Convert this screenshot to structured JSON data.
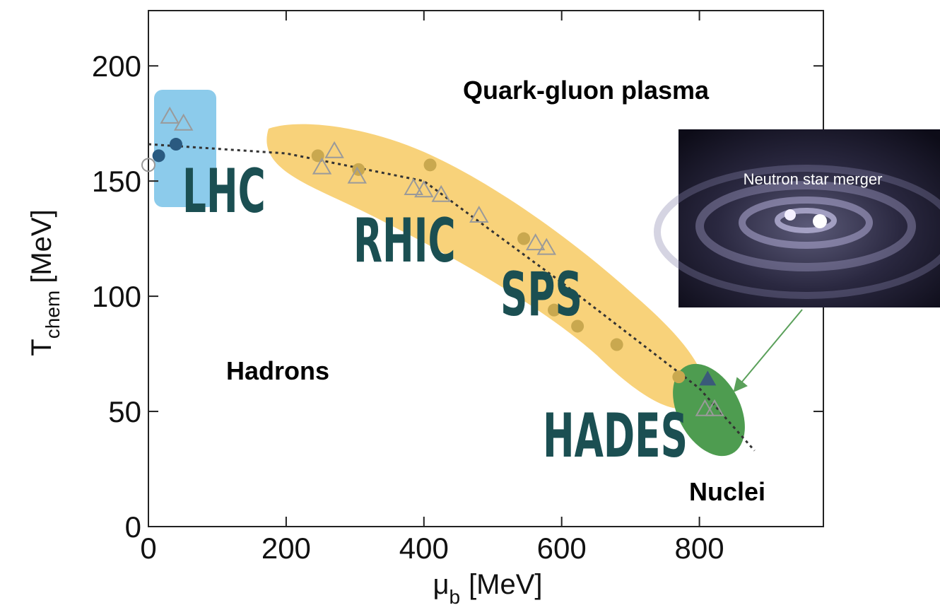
{
  "chart_data": {
    "type": "scatter",
    "xlabel": {
      "symbol": "μ",
      "subscript": "b",
      "unit": "[MeV]"
    },
    "ylabel": {
      "symbol": "T",
      "subscript": "chem",
      "unit": "[MeV]"
    },
    "xlim": [
      0,
      980
    ],
    "ylim": [
      0,
      224
    ],
    "xticks": [
      0,
      200,
      400,
      600,
      800
    ],
    "yticks": [
      0,
      50,
      100,
      150,
      200
    ],
    "series": [
      {
        "color": "#2a5a80",
        "marker": "circle",
        "x": [
          15,
          40
        ],
        "values": [
          161,
          166
        ]
      },
      {
        "color": "#999999",
        "marker": "circle-open",
        "x": [
          0
        ],
        "values": [
          157
        ]
      },
      {
        "color": "#c9a84f",
        "marker": "circle",
        "x": [
          246,
          305,
          409,
          545,
          589,
          623,
          680,
          770
        ],
        "values": [
          161,
          155,
          157,
          125,
          94,
          87,
          79,
          65
        ]
      },
      {
        "color": "#9a9a9a",
        "marker": "triangle-open",
        "x": [
          31,
          51,
          270,
          252,
          303,
          385,
          400,
          425,
          480,
          562,
          578,
          808,
          822
        ],
        "values": [
          178,
          175,
          163,
          156,
          152,
          147,
          146,
          144,
          135,
          123,
          121,
          51,
          51
        ]
      },
      {
        "color": "#3a5a7a",
        "marker": "triangle",
        "x": [
          812
        ],
        "values": [
          64
        ]
      }
    ],
    "curve": {
      "color": "#333333",
      "x": [
        0,
        200,
        400,
        600,
        800,
        880
      ],
      "values": [
        166,
        162,
        150,
        106,
        60,
        33
      ]
    },
    "region_labels": [
      "LHC",
      "RHIC",
      "SPS",
      "HADES"
    ],
    "annotations": [
      "Quark-gluon plasma",
      "Hadrons",
      "Nuclei",
      "Neutron star merger"
    ]
  }
}
